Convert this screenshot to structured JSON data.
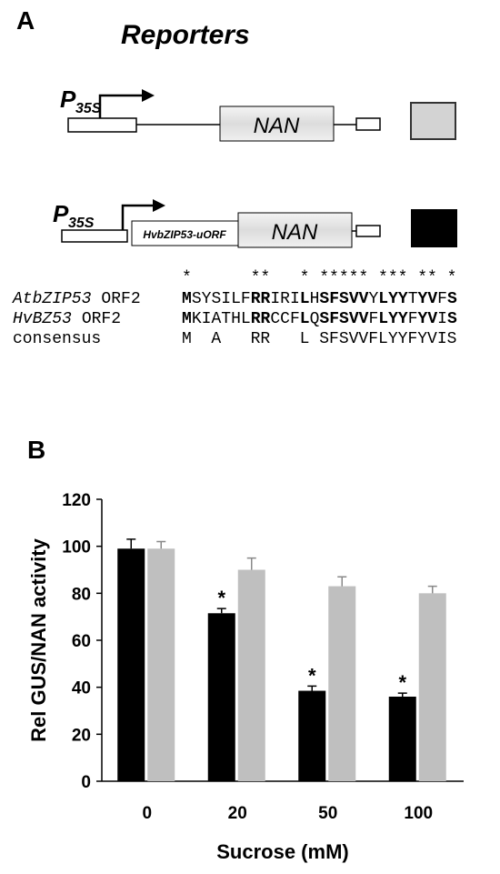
{
  "panel_a": {
    "label": "A",
    "title": "Reporters",
    "constructs": [
      {
        "promoter": "P",
        "promoter_subscript": "35S",
        "gene": "NAN"
      },
      {
        "promoter": "P",
        "promoter_subscript": "35S",
        "uorf": "HvbZIP53-uORF",
        "gene": "NAN"
      }
    ],
    "alignment": {
      "stars": "*      **   * ***** *** ** *",
      "rows": [
        {
          "name": "AtbZIP53",
          "suffix": "ORF2",
          "seq": "MSYSILFRRIRILHSFSVVYLYYTYVFS"
        },
        {
          "name": "HvBZ53",
          "suffix": "ORF2",
          "seq": "MKIATHLRRCCFLQSFSVVFLYYFYVIS"
        }
      ],
      "consensus_label": "consensus",
      "consensus": "M  A   RR   L SFSVVFLYYFYVIS"
    }
  },
  "panel_b": {
    "label": "B"
  },
  "chart_data": {
    "type": "bar",
    "y_label": "Rel GUS/NAN activity",
    "x_label": "Sucrose (mM)",
    "categories": [
      "0",
      "20",
      "50",
      "100"
    ],
    "series": [
      {
        "color": "#000000",
        "values": [
          99,
          71.5,
          38.5,
          36
        ],
        "errors": [
          4,
          2,
          2,
          1.5
        ],
        "annotations": [
          null,
          "*",
          "*",
          "*"
        ]
      },
      {
        "color": "#bfbfbf",
        "values": [
          99,
          90,
          83,
          80
        ],
        "errors": [
          3,
          5,
          4,
          3
        ]
      }
    ],
    "ylim": [
      0,
      120
    ],
    "yticks": [
      0,
      20,
      40,
      60,
      80,
      100,
      120
    ]
  }
}
